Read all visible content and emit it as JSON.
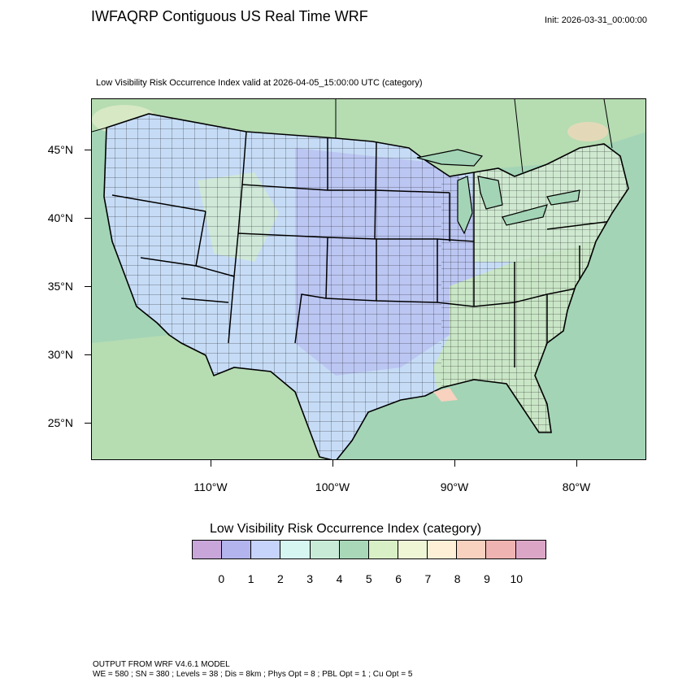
{
  "header": {
    "title": "IWFAQRP Contiguous US Real Time WRF",
    "init": "Init: 2026-03-31_00:00:00"
  },
  "map": {
    "subtitle": "Low Visibility Risk Occurrence Index valid at 2026-04-05_15:00:00 UTC   (category)",
    "lat_labels": [
      "45°N",
      "40°N",
      "35°N",
      "30°N",
      "25°N"
    ],
    "lon_labels": [
      "110°W",
      "100°W",
      "90°W",
      "80°W"
    ],
    "colors": {
      "ocean": "#a3d4b6",
      "land_outside": "#b9dcb4",
      "west_fill": "#c6dcf6",
      "central_fill": "#bcc6f2",
      "southeast_fill": "#c9e6c6",
      "boundary": "#000000"
    }
  },
  "legend": {
    "title": "Low Visibility Risk Occurrence Index  (category)",
    "labels": [
      "0",
      "1",
      "2",
      "3",
      "4",
      "5",
      "6",
      "7",
      "8",
      "9",
      "10"
    ],
    "colors": [
      "#c9a6da",
      "#b3b3ee",
      "#c6d3fa",
      "#d6f7f1",
      "#c8ebd8",
      "#a9d8b9",
      "#d9efc6",
      "#eef6d6",
      "#fdf0d6",
      "#f8d1bf",
      "#efb3b1",
      "#dba6c6"
    ]
  },
  "footer": {
    "line1": "OUTPUT FROM WRF V4.6.1 MODEL",
    "line2": "WE = 580 ; SN = 380 ; Levels = 38 ; Dis = 8km ; Phys Opt = 8 ; PBL Opt = 1 ; Cu Opt = 5"
  }
}
